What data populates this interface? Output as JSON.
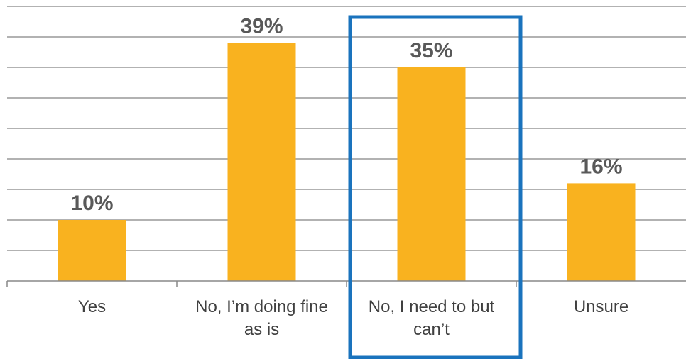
{
  "chart_data": {
    "type": "bar",
    "categories": [
      "Yes",
      "No, I’m doing fine as is",
      "No, I need to but can’t",
      "Unsure"
    ],
    "category_lines": [
      [
        "Yes"
      ],
      [
        "No, I’m doing fine",
        "as is"
      ],
      [
        "No, I need to but",
        "can’t"
      ],
      [
        "Unsure"
      ]
    ],
    "values": [
      10,
      39,
      35,
      16
    ],
    "data_labels": [
      "10%",
      "39%",
      "35%",
      "16%"
    ],
    "ylim": [
      0,
      45
    ],
    "y_gridline_step": 5,
    "grid": true,
    "highlighted_category_index": 2,
    "colors": {
      "bar": "#F9B21F",
      "highlight": "#1A73BD"
    }
  }
}
